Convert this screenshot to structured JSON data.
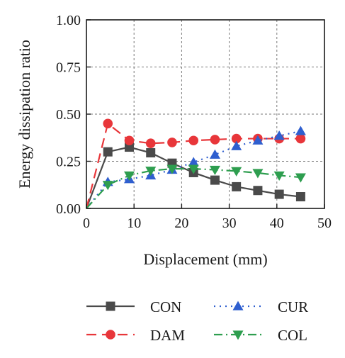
{
  "chart_data": {
    "type": "line",
    "title": "",
    "xlabel": "Displacement (mm)",
    "ylabel": "Energy dissipation ratio",
    "xlim": [
      0,
      50
    ],
    "ylim": [
      0,
      1.0
    ],
    "xticks": [
      0,
      10,
      20,
      30,
      40,
      50
    ],
    "xtick_labels": [
      "0",
      "10",
      "20",
      "30",
      "40",
      "50"
    ],
    "yticks": [
      0,
      0.25,
      0.5,
      0.75,
      1.0
    ],
    "ytick_labels": [
      "0.00",
      "0.25",
      "0.50",
      "0.75",
      "1.00"
    ],
    "grid": true,
    "grid_style": "dashed",
    "legend_position": "bottom",
    "series": [
      {
        "name": "CON",
        "color": "#4a4a4a",
        "line_style": "solid",
        "marker": "square",
        "x": [
          0,
          4.5,
          9,
          13.5,
          18,
          22.5,
          27,
          31.5,
          36,
          40.5,
          45
        ],
        "y": [
          0,
          0.3,
          0.325,
          0.295,
          0.24,
          0.19,
          0.15,
          0.115,
          0.095,
          0.075,
          0.062
        ]
      },
      {
        "name": "DAM",
        "color": "#e8363a",
        "line_style": "dashed",
        "marker": "circle",
        "x": [
          0,
          4.5,
          9,
          13.5,
          18,
          22.5,
          27,
          31.5,
          36,
          40.5,
          45
        ],
        "y": [
          0,
          0.45,
          0.36,
          0.345,
          0.35,
          0.36,
          0.365,
          0.37,
          0.37,
          0.37,
          0.37
        ]
      },
      {
        "name": "CUR",
        "color": "#2f5fcf",
        "line_style": "dotted",
        "marker": "triangle-up",
        "x": [
          0,
          4.5,
          9,
          13.5,
          18,
          22.5,
          27,
          31.5,
          36,
          40.5,
          45
        ],
        "y": [
          0,
          0.14,
          0.155,
          0.175,
          0.205,
          0.245,
          0.285,
          0.33,
          0.36,
          0.385,
          0.41
        ]
      },
      {
        "name": "COL",
        "color": "#2e9e4f",
        "line_style": "dashdot",
        "marker": "triangle-down",
        "x": [
          0,
          4.5,
          9,
          13.5,
          18,
          22.5,
          27,
          31.5,
          36,
          40.5,
          45
        ],
        "y": [
          0,
          0.125,
          0.175,
          0.2,
          0.21,
          0.21,
          0.205,
          0.198,
          0.188,
          0.175,
          0.165
        ]
      }
    ]
  }
}
